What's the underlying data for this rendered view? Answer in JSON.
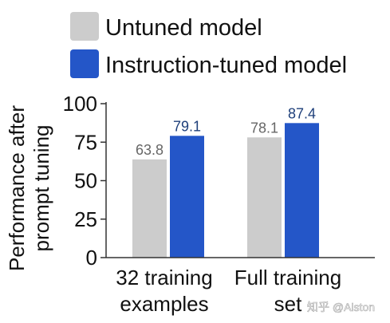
{
  "chart_data": {
    "type": "bar",
    "categories": [
      {
        "lines": [
          "32 training",
          "examples"
        ]
      },
      {
        "lines": [
          "Full training",
          "set"
        ]
      }
    ],
    "series": [
      {
        "name": "Untuned model",
        "color": "#cccccc",
        "label_color": "#666666",
        "values": [
          63.8,
          78.1
        ],
        "value_labels": [
          "63.8",
          "78.1"
        ]
      },
      {
        "name": "Instruction-tuned model",
        "color": "#2456c8",
        "label_color": "#1e3f7a",
        "values": [
          79.1,
          87.4
        ],
        "value_labels": [
          "79.1",
          "87.4"
        ]
      }
    ],
    "ylabel_lines": [
      "Performance after",
      "prompt tuning"
    ],
    "ylim": [
      0,
      100
    ],
    "yticks": [
      {
        "value": 0,
        "label": "0"
      },
      {
        "value": 25,
        "label": "25"
      },
      {
        "value": 50,
        "label": "50"
      },
      {
        "value": 75,
        "label": "75"
      },
      {
        "value": 100,
        "label": "100"
      }
    ],
    "grid": false,
    "legend_position": "top"
  },
  "watermark": "知乎 @Alston"
}
